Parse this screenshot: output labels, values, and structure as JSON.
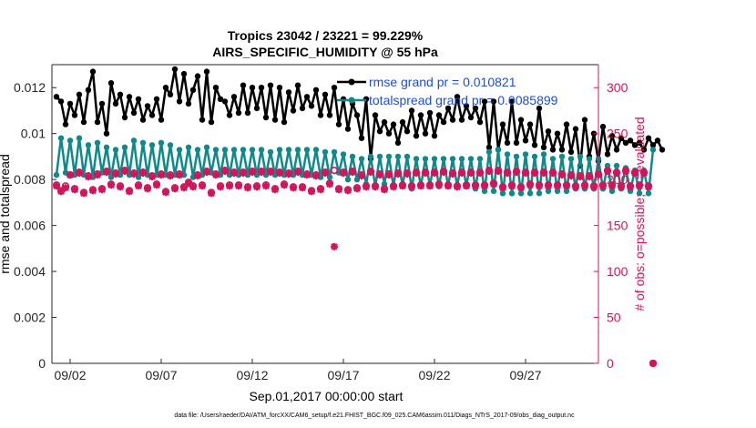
{
  "chart_data": {
    "type": "line",
    "title": "Tropics 23042 / 23221 = 99.229%",
    "subtitle": "AIRS_SPECIFIC_HUMIDITY @ 55 hPa",
    "xlabel": "Sep.01,2017 00:00:00 start",
    "ylabel": "rmse and totalspread",
    "ylabel_right": "# of obs: o=possible; ∗=evaluated",
    "footer": "data file: /Users/raeder/DAI/ATM_forcXX/CAM6_setup/f.e21.FHIST_BGC.f09_025.CAM6assim.011/Diags_NTrS_2017-09/obs_diag_output.nc",
    "x_ticks": [
      "09/02",
      "09/07",
      "09/12",
      "09/17",
      "09/22",
      "09/27"
    ],
    "x_tick_days": [
      2,
      7,
      12,
      17,
      22,
      27
    ],
    "xlim_days": [
      1,
      31
    ],
    "ylim_left": [
      0,
      0.013
    ],
    "y_ticks_left": [
      "0",
      "0.002",
      "0.004",
      "0.006",
      "0.008",
      "0.01",
      "0.012"
    ],
    "ylim_right": [
      0,
      325
    ],
    "y_ticks_right": [
      "0",
      "50",
      "100",
      "150",
      "200",
      "250",
      "300"
    ],
    "colors": {
      "rmse": "#000000",
      "spread": "#0e8a8a",
      "obs": "#d4145a",
      "legend_text": "#1f4fd1"
    },
    "legend": [
      {
        "label": "rmse grand pr = 0.010821",
        "color": "#000000"
      },
      {
        "label": "totalspread grand pr = 0.0085899",
        "color": "#0e8a8a"
      }
    ],
    "series": [
      {
        "name": "rmse",
        "axis": "left",
        "marker": "dot",
        "values": [
          0.0116,
          0.0114,
          0.0104,
          0.0113,
          0.0108,
          0.0117,
          0.0105,
          0.0119,
          0.0127,
          0.0105,
          0.0113,
          0.01,
          0.0122,
          0.0113,
          0.0117,
          0.0107,
          0.0116,
          0.0109,
          0.0115,
          0.0106,
          0.0112,
          0.0108,
          0.0115,
          0.0106,
          0.012,
          0.0117,
          0.0128,
          0.0114,
          0.0126,
          0.0113,
          0.0119,
          0.0125,
          0.0106,
          0.0127,
          0.0105,
          0.012,
          0.0115,
          0.0114,
          0.0108,
          0.0116,
          0.0109,
          0.0121,
          0.0109,
          0.012,
          0.0111,
          0.012,
          0.0107,
          0.0121,
          0.0106,
          0.012,
          0.0105,
          0.0118,
          0.011,
          0.0121,
          0.0111,
          0.0116,
          0.0112,
          0.0119,
          0.0108,
          0.0117,
          0.0108,
          0.012,
          0.0104,
          0.0115,
          0.0102,
          0.0113,
          0.0108,
          0.0098,
          0.0115,
          0.0089,
          0.0108,
          0.0101,
          0.0105,
          0.01,
          0.0104,
          0.0096,
          0.0105,
          0.0101,
          0.011,
          0.0099,
          0.0108,
          0.01,
          0.0109,
          0.0099,
          0.0108,
          0.0105,
          0.0111,
          0.0106,
          0.0116,
          0.0106,
          0.0112,
          0.0107,
          0.0111,
          0.0105,
          0.0114,
          0.0094,
          0.0114,
          0.0093,
          0.0104,
          0.0096,
          0.0114,
          0.0096,
          0.0106,
          0.0097,
          0.0104,
          0.0095,
          0.0111,
          0.0094,
          0.0101,
          0.0093,
          0.01,
          0.0093,
          0.0104,
          0.0092,
          0.0102,
          0.0086,
          0.0106,
          0.009,
          0.01,
          0.0088,
          0.0103,
          0.0091,
          0.0099,
          0.0093,
          0.0098,
          0.0096,
          0.0097,
          0.0095,
          0.0096,
          0.0093,
          0.0098,
          0.0095,
          0.0097,
          0.0093
        ]
      },
      {
        "name": "totalspread",
        "axis": "left",
        "marker": "dot",
        "values": [
          0.0082,
          0.0098,
          0.0083,
          0.0097,
          0.0082,
          0.0098,
          0.0082,
          0.0095,
          0.0081,
          0.0096,
          0.0083,
          0.0094,
          0.0081,
          0.0093,
          0.0082,
          0.0094,
          0.0082,
          0.0097,
          0.0081,
          0.0096,
          0.0082,
          0.0095,
          0.0082,
          0.0096,
          0.0082,
          0.0095,
          0.0082,
          0.0093,
          0.0082,
          0.0094,
          0.0081,
          0.0093,
          0.0082,
          0.0094,
          0.0083,
          0.0093,
          0.0082,
          0.0093,
          0.0082,
          0.0093,
          0.0082,
          0.0093,
          0.0082,
          0.0093,
          0.0082,
          0.0093,
          0.0082,
          0.0092,
          0.0082,
          0.0093,
          0.0082,
          0.0093,
          0.0082,
          0.0093,
          0.0082,
          0.0093,
          0.0082,
          0.0093,
          0.0081,
          0.0092,
          0.0081,
          0.0092,
          0.0083,
          0.0091,
          0.008,
          0.009,
          0.008,
          0.0089,
          0.0078,
          0.009,
          0.0077,
          0.009,
          0.0078,
          0.009,
          0.0077,
          0.009,
          0.0077,
          0.009,
          0.0076,
          0.0089,
          0.0077,
          0.0089,
          0.0077,
          0.0089,
          0.0077,
          0.0089,
          0.0077,
          0.0089,
          0.0077,
          0.0089,
          0.0077,
          0.0089,
          0.0076,
          0.0089,
          0.0075,
          0.0092,
          0.0075,
          0.0093,
          0.0074,
          0.0091,
          0.0074,
          0.009,
          0.0074,
          0.0091,
          0.0074,
          0.009,
          0.0074,
          0.0091,
          0.0075,
          0.0089,
          0.0075,
          0.009,
          0.0075,
          0.0089,
          0.0076,
          0.009,
          0.0076,
          0.0089,
          0.0076,
          0.0089,
          0.0076,
          0.0086,
          0.0075,
          0.0086,
          0.0076,
          0.0085,
          0.0075,
          0.0084,
          0.0074,
          0.0084,
          0.0074,
          0.0093
        ]
      },
      {
        "name": "obs possible",
        "axis": "right",
        "marker": "circle",
        "values": [
          194,
          188,
          193,
          205,
          190,
          208,
          186,
          204,
          189,
          206,
          190,
          209,
          195,
          207,
          193,
          210,
          188,
          207,
          194,
          208,
          191,
          204,
          195,
          206,
          187,
          205,
          191,
          206,
          192,
          197,
          193,
          205,
          194,
          209,
          186,
          206,
          193,
          210,
          194,
          208,
          194,
          208,
          192,
          209,
          193,
          209,
          194,
          209,
          190,
          208,
          195,
          207,
          192,
          209,
          192,
          206,
          188,
          205,
          190,
          208,
          196,
          210,
          190,
          208,
          189,
          209,
          191,
          205,
          193,
          209,
          193,
          206,
          190,
          206,
          193,
          207,
          194,
          207,
          193,
          208,
          194,
          208,
          194,
          208,
          195,
          209,
          194,
          207,
          193,
          208,
          194,
          208,
          194,
          208,
          194,
          210,
          196,
          210,
          192,
          208,
          194,
          209,
          192,
          208,
          195,
          208,
          194,
          208,
          194,
          208,
          194,
          206,
          194,
          205,
          193,
          204,
          194,
          204,
          193,
          206,
          194,
          210,
          194,
          208,
          193,
          210,
          193,
          208,
          194,
          208,
          193,
          0
        ]
      },
      {
        "name": "obs evaluated",
        "axis": "right",
        "marker": "star",
        "values": [
          193,
          187,
          191,
          205,
          189,
          207,
          185,
          203,
          188,
          205,
          189,
          208,
          194,
          206,
          192,
          209,
          187,
          206,
          193,
          207,
          190,
          203,
          194,
          205,
          186,
          204,
          190,
          205,
          191,
          196,
          192,
          204,
          193,
          208,
          185,
          205,
          192,
          209,
          193,
          207,
          193,
          207,
          191,
          208,
          192,
          208,
          193,
          208,
          189,
          207,
          194,
          206,
          191,
          208,
          191,
          205,
          187,
          204,
          189,
          207,
          195,
          127,
          189,
          207,
          188,
          208,
          190,
          204,
          192,
          208,
          192,
          205,
          189,
          205,
          192,
          206,
          193,
          206,
          192,
          207,
          193,
          207,
          193,
          207,
          194,
          208,
          193,
          206,
          192,
          207,
          193,
          207,
          193,
          207,
          193,
          209,
          195,
          209,
          191,
          207,
          193,
          208,
          191,
          207,
          194,
          207,
          193,
          207,
          193,
          207,
          193,
          205,
          193,
          204,
          192,
          203,
          193,
          203,
          192,
          205,
          193,
          209,
          193,
          207,
          192,
          209,
          192,
          207,
          193,
          207,
          192,
          0
        ]
      }
    ]
  }
}
